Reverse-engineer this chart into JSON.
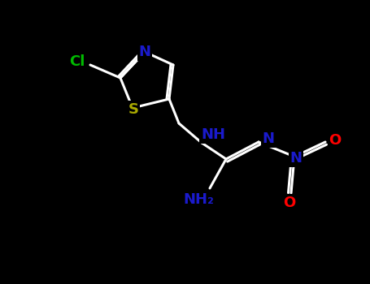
{
  "background_color": "#000000",
  "atom_colors": {
    "Cl": "#00bb00",
    "N": "#1a1acc",
    "S": "#aaaa00",
    "O": "#ff0000",
    "C": "#ffffff"
  },
  "figsize": [
    4.55,
    3.5
  ],
  "dpi": 100,
  "bond_lw": 2.2,
  "bond_color": "#ffffff",
  "font_size": 13
}
